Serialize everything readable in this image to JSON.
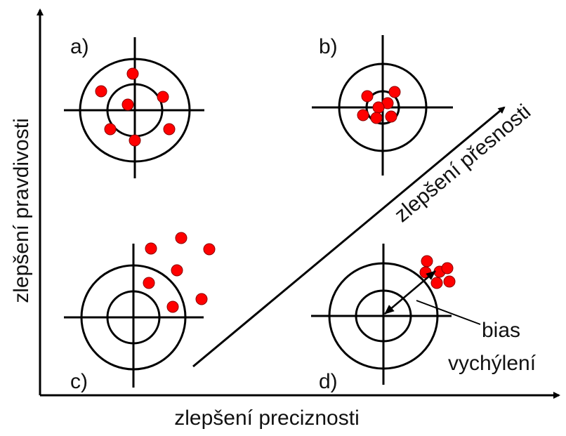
{
  "labels": {
    "a": "a)",
    "b": "b)",
    "c": "c)",
    "d": "d)"
  },
  "axes": {
    "y_label": "zlepšení pravdivosti",
    "x_label": "zlepšení preciznosti",
    "diagonal_label": "zlepšení přesnosti"
  },
  "annotation": {
    "bias": "bias",
    "bias_cz": "vychýlení"
  },
  "colors": {
    "dot": "#ff0000",
    "line": "#000000"
  }
}
